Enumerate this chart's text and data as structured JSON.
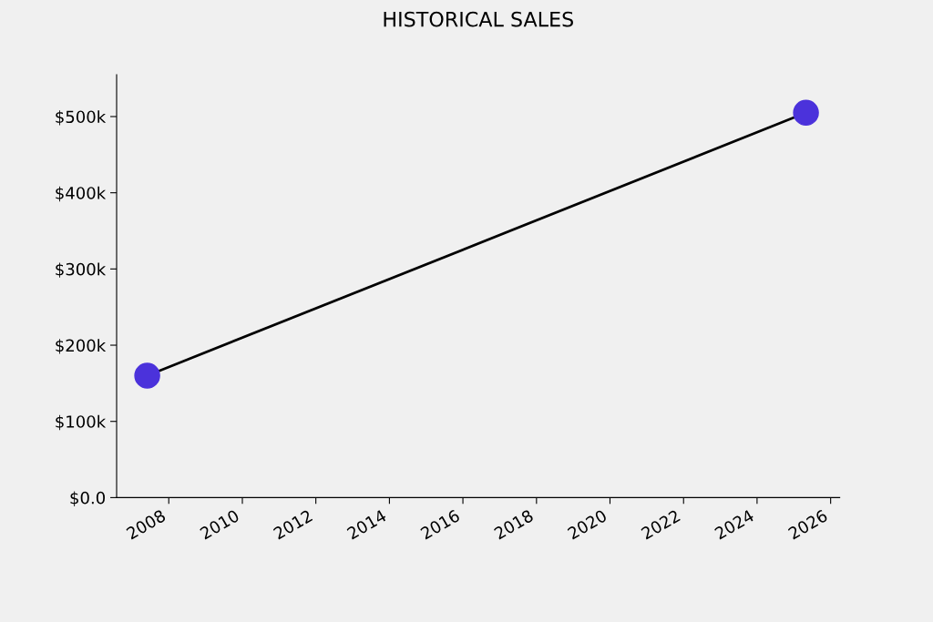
{
  "chart_data": {
    "type": "line",
    "title": "HISTORICAL SALES",
    "x": [
      "2007-06",
      "2025-05"
    ],
    "series": [
      {
        "color": "#4b32db",
        "values": [
          160000,
          505000
        ]
      }
    ],
    "marker": "circle",
    "line_style": "solid",
    "grid": false,
    "legend": false,
    "xlim": [
      "2006-08",
      "2026-04"
    ],
    "xticks": [
      {
        "value": "2008",
        "label": "2008"
      },
      {
        "value": "2010",
        "label": "2010"
      },
      {
        "value": "2012",
        "label": "2012"
      },
      {
        "value": "2014",
        "label": "2014"
      },
      {
        "value": "2016",
        "label": "2016"
      },
      {
        "value": "2018",
        "label": "2018"
      },
      {
        "value": "2020",
        "label": "2020"
      },
      {
        "value": "2022",
        "label": "2022"
      },
      {
        "value": "2024",
        "label": "2024"
      },
      {
        "value": "2026",
        "label": "2026"
      }
    ],
    "ylim": [
      0,
      555000
    ],
    "yticks": [
      {
        "value": 0,
        "label": "$0.0"
      },
      {
        "value": 100000,
        "label": "$100k"
      },
      {
        "value": 200000,
        "label": "$200k"
      },
      {
        "value": 300000,
        "label": "$300k"
      },
      {
        "value": 400000,
        "label": "$400k"
      },
      {
        "value": 500000,
        "label": "$500k"
      }
    ]
  }
}
